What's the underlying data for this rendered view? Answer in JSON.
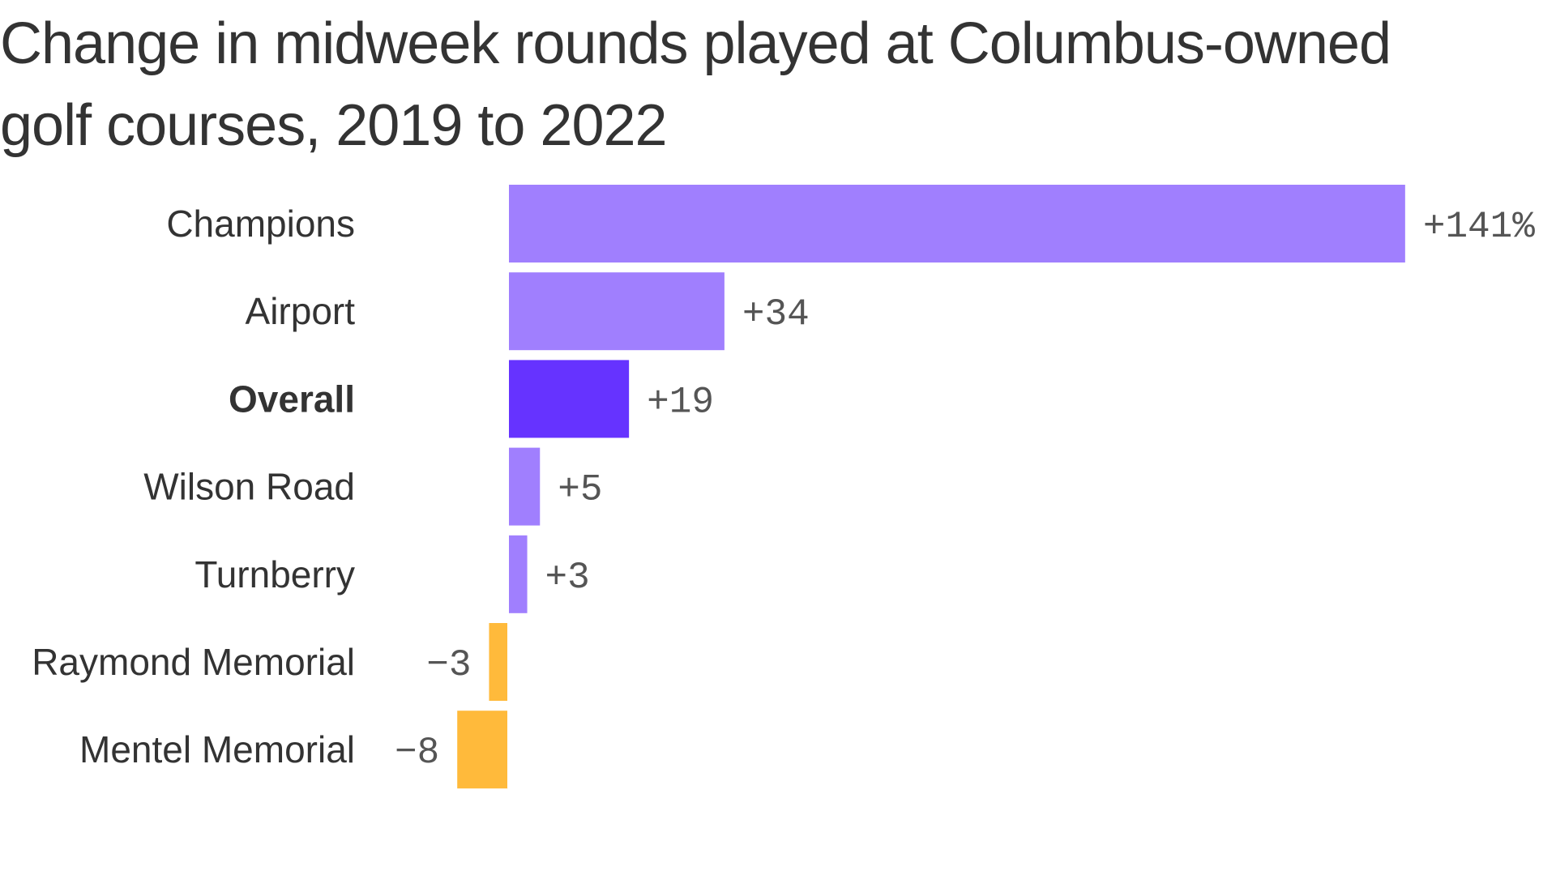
{
  "chart_data": {
    "type": "bar",
    "orientation": "horizontal",
    "title": "Change in midweek rounds played at Columbus-owned golf courses, 2019 to 2022",
    "xlabel": "",
    "ylabel": "",
    "unit": "%",
    "xlim": [
      -10,
      141
    ],
    "categories": [
      "Champions",
      "Airport",
      "Overall",
      "Wilson Road",
      "Turnberry",
      "Raymond Memorial",
      "Mentel Memorial"
    ],
    "values": [
      141,
      34,
      19,
      5,
      3,
      -3,
      -8
    ],
    "value_labels": [
      "+141%",
      "+34",
      "+19",
      "+5",
      "+3",
      "−3",
      "−8"
    ],
    "highlight": [
      "Overall"
    ],
    "colors": {
      "positive": "#a07ffe",
      "highlight": "#6633ff",
      "negative": "#ffba3b"
    }
  }
}
